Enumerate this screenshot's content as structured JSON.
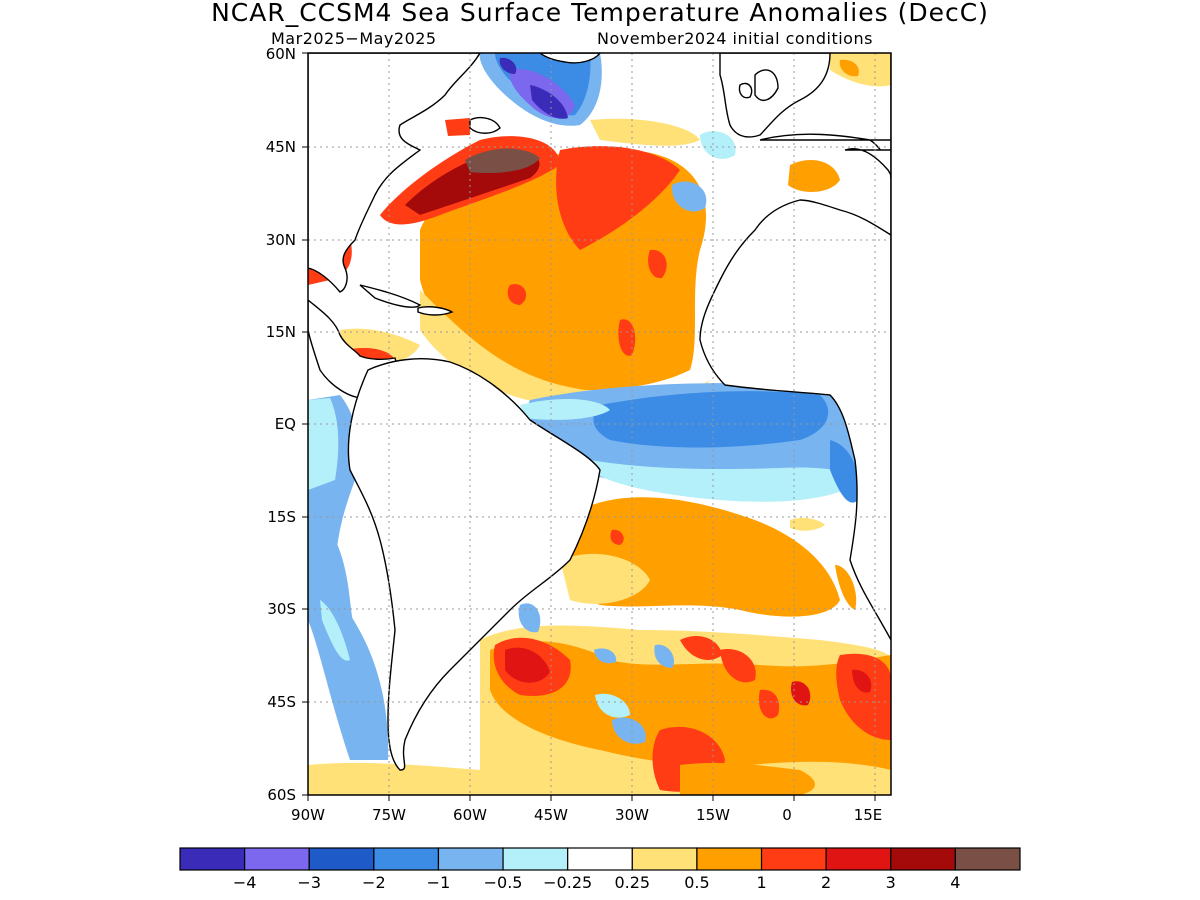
{
  "title": "NCAR_CCSM4 Sea Surface Temperature Anomalies (DecC)",
  "subtitle_left": "Mar2025−May2025",
  "subtitle_right": "November2024 initial conditions",
  "lat_labels": [
    "60N",
    "45N",
    "30N",
    "15N",
    "EQ",
    "15S",
    "30S",
    "45S",
    "60S"
  ],
  "lon_labels": [
    "90W",
    "75W",
    "60W",
    "45W",
    "30W",
    "15W",
    "0",
    "15E"
  ],
  "colorbar": {
    "colors": [
      "#3a2bb8",
      "#7b68ee",
      "#1e5ac8",
      "#3c8ce6",
      "#78b4f0",
      "#b4f0fa",
      "#ffffff",
      "#ffe178",
      "#ffa000",
      "#ff3c14",
      "#e11414",
      "#a50a0a",
      "#7a4f45"
    ],
    "labels": [
      "−4",
      "−3",
      "−2",
      "−1",
      "−0.5",
      "−0.25",
      "0.25",
      "0.5",
      "1",
      "2",
      "3",
      "4"
    ]
  },
  "map_extent": {
    "lon_min": -90,
    "lon_max": 18,
    "lat_min": -60,
    "lat_max": 60
  }
}
